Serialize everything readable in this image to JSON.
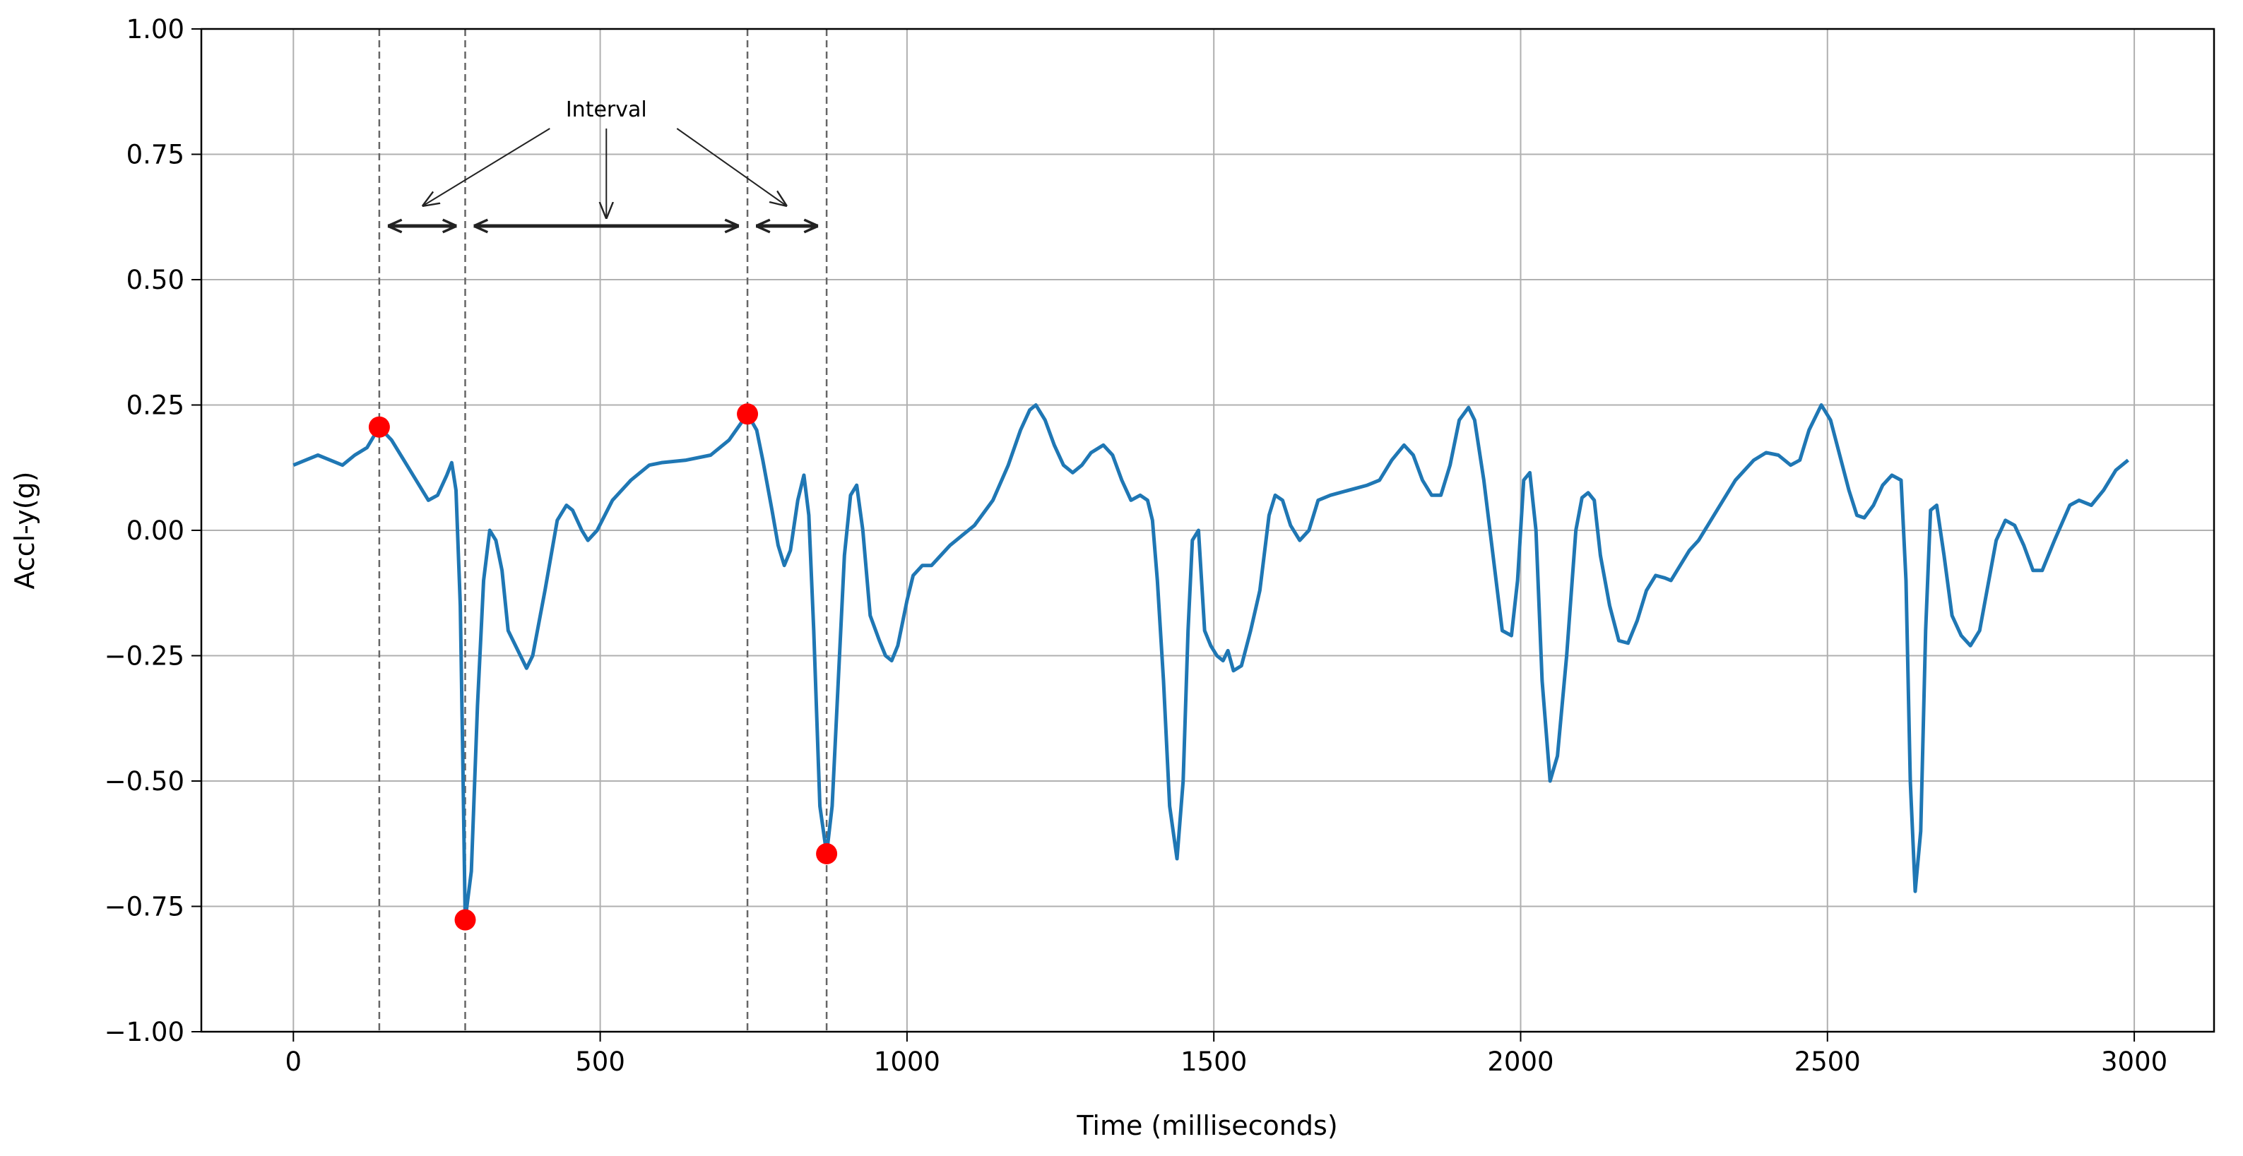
{
  "chart_data": {
    "type": "line",
    "xlabel": "Time (milliseconds)",
    "ylabel": "Accl-y(g)",
    "color": "#1f77b4",
    "x": [
      0,
      20,
      40,
      60,
      80,
      100,
      120,
      140,
      160,
      180,
      200,
      220,
      235,
      250,
      258,
      265,
      272,
      276,
      280,
      290,
      300,
      310,
      320,
      330,
      340,
      350,
      370,
      380,
      390,
      410,
      430,
      445,
      455,
      470,
      480,
      495,
      520,
      550,
      580,
      600,
      640,
      680,
      710,
      740,
      755,
      765,
      780,
      790,
      800,
      810,
      822,
      832,
      840,
      848,
      858,
      869,
      878,
      888,
      898,
      908,
      918,
      928,
      940,
      955,
      965,
      975,
      985,
      1000,
      1010,
      1025,
      1040,
      1055,
      1070,
      1090,
      1110,
      1140,
      1165,
      1185,
      1200,
      1210,
      1225,
      1240,
      1255,
      1270,
      1285,
      1300,
      1320,
      1335,
      1350,
      1365,
      1380,
      1392,
      1400,
      1408,
      1418,
      1428,
      1440,
      1450,
      1458,
      1465,
      1475,
      1485,
      1495,
      1505,
      1515,
      1523,
      1532,
      1545,
      1560,
      1575,
      1590,
      1600,
      1612,
      1625,
      1640,
      1655,
      1670,
      1690,
      1720,
      1750,
      1770,
      1790,
      1810,
      1825,
      1840,
      1855,
      1870,
      1885,
      1900,
      1915,
      1925,
      1940,
      1955,
      1970,
      1985,
      1995,
      2005,
      2015,
      2025,
      2035,
      2048,
      2060,
      2075,
      2090,
      2100,
      2110,
      2120,
      2130,
      2145,
      2160,
      2175,
      2190,
      2205,
      2220,
      2235,
      2245,
      2260,
      2275,
      2290,
      2320,
      2350,
      2380,
      2400,
      2420,
      2440,
      2455,
      2470,
      2490,
      2505,
      2520,
      2535,
      2548,
      2560,
      2575,
      2590,
      2605,
      2620,
      2628,
      2635,
      2643,
      2652,
      2660,
      2668,
      2678,
      2690,
      2703,
      2718,
      2733,
      2748,
      2760,
      2775,
      2790,
      2805,
      2820,
      2835,
      2850,
      2870,
      2895,
      2910,
      2930,
      2950,
      2970,
      2990
    ],
    "values": [
      0.13,
      0.14,
      0.15,
      0.14,
      0.13,
      0.15,
      0.165,
      0.206,
      0.18,
      0.14,
      0.1,
      0.06,
      0.07,
      0.11,
      0.135,
      0.08,
      -0.15,
      -0.45,
      -0.777,
      -0.68,
      -0.35,
      -0.1,
      0.0,
      -0.02,
      -0.08,
      -0.2,
      -0.25,
      -0.275,
      -0.25,
      -0.12,
      0.02,
      0.05,
      0.04,
      0.0,
      -0.02,
      0.0,
      0.06,
      0.1,
      0.13,
      0.135,
      0.14,
      0.15,
      0.18,
      0.232,
      0.2,
      0.14,
      0.04,
      -0.03,
      -0.07,
      -0.04,
      0.06,
      0.11,
      0.03,
      -0.2,
      -0.55,
      -0.645,
      -0.55,
      -0.3,
      -0.05,
      0.07,
      0.09,
      0.0,
      -0.17,
      -0.22,
      -0.25,
      -0.26,
      -0.23,
      -0.14,
      -0.09,
      -0.07,
      -0.07,
      -0.05,
      -0.03,
      -0.01,
      0.01,
      0.06,
      0.13,
      0.2,
      0.24,
      0.25,
      0.22,
      0.17,
      0.13,
      0.115,
      0.13,
      0.155,
      0.17,
      0.15,
      0.1,
      0.06,
      0.07,
      0.06,
      0.02,
      -0.1,
      -0.3,
      -0.55,
      -0.655,
      -0.5,
      -0.2,
      -0.02,
      0.0,
      -0.2,
      -0.23,
      -0.25,
      -0.26,
      -0.24,
      -0.28,
      -0.27,
      -0.2,
      -0.12,
      0.03,
      0.07,
      0.06,
      0.01,
      -0.02,
      0.0,
      0.06,
      0.07,
      0.08,
      0.09,
      0.1,
      0.14,
      0.17,
      0.15,
      0.1,
      0.07,
      0.07,
      0.13,
      0.22,
      0.245,
      0.22,
      0.1,
      -0.05,
      -0.2,
      -0.21,
      -0.1,
      0.1,
      0.115,
      0.0,
      -0.3,
      -0.5,
      -0.45,
      -0.25,
      0.0,
      0.065,
      0.075,
      0.06,
      -0.05,
      -0.15,
      -0.22,
      -0.225,
      -0.18,
      -0.12,
      -0.09,
      -0.095,
      -0.1,
      -0.07,
      -0.04,
      -0.02,
      0.04,
      0.1,
      0.14,
      0.155,
      0.15,
      0.13,
      0.14,
      0.2,
      0.25,
      0.22,
      0.15,
      0.08,
      0.03,
      0.025,
      0.05,
      0.09,
      0.11,
      0.1,
      -0.1,
      -0.5,
      -0.72,
      -0.6,
      -0.2,
      0.04,
      0.05,
      -0.05,
      -0.17,
      -0.21,
      -0.23,
      -0.2,
      -0.12,
      -0.02,
      0.02,
      0.01,
      -0.03,
      -0.08,
      -0.08,
      -0.02,
      0.05,
      0.06,
      0.05,
      0.08,
      0.12,
      0.14
    ],
    "points": {
      "x": [
        140,
        280,
        740,
        869
      ],
      "values": [
        0.206,
        -0.777,
        0.232,
        -0.645
      ],
      "color": "red"
    },
    "vlines": [
      140,
      280,
      740,
      869
    ],
    "annotation": "Interval",
    "xlim": [
      -150,
      3130
    ],
    "ylim": [
      -1,
      1
    ],
    "xticks": [
      0,
      500,
      1000,
      1500,
      2000,
      2500,
      3000
    ],
    "yticks": [
      {
        "value": -1,
        "label": "−1.00"
      },
      {
        "value": -0.75,
        "label": "−0.75"
      },
      {
        "value": -0.5,
        "label": "−0.50"
      },
      {
        "value": -0.25,
        "label": "−0.25"
      },
      {
        "value": 0,
        "label": "0.00"
      },
      {
        "value": 0.25,
        "label": "0.25"
      },
      {
        "value": 0.5,
        "label": "0.50"
      },
      {
        "value": 0.75,
        "label": "0.75"
      },
      {
        "value": 1,
        "label": "1.00"
      }
    ],
    "grid": true
  }
}
